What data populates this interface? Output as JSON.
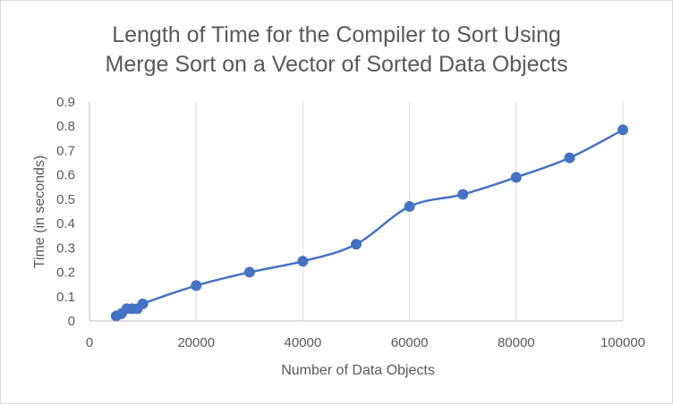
{
  "chart_data": {
    "type": "scatter",
    "title_lines": [
      "Length of Time for the Compiler to Sort Using",
      "Merge Sort on a Vector of Sorted Data Objects"
    ],
    "xlabel": "Number of Data Objects",
    "ylabel": "Time (in seconds)",
    "xlim": [
      0,
      100000
    ],
    "ylim": [
      0,
      0.9
    ],
    "x_ticks": [
      0,
      20000,
      40000,
      60000,
      80000,
      100000
    ],
    "y_ticks": [
      0,
      0.1,
      0.2,
      0.3,
      0.4,
      0.5,
      0.6,
      0.7,
      0.8,
      0.9
    ],
    "grid": "vertical",
    "legend": "none",
    "smoothed_line": true,
    "color": "#4472c4",
    "series": [
      {
        "x": [
          5000,
          6000,
          7000,
          8000,
          9000,
          10000,
          20000,
          30000,
          40000,
          50000,
          60000,
          70000,
          80000,
          90000,
          100000
        ],
        "y": [
          0.02,
          0.03,
          0.05,
          0.05,
          0.05,
          0.07,
          0.145,
          0.2,
          0.245,
          0.315,
          0.47,
          0.52,
          0.59,
          0.67,
          0.785
        ]
      }
    ]
  }
}
